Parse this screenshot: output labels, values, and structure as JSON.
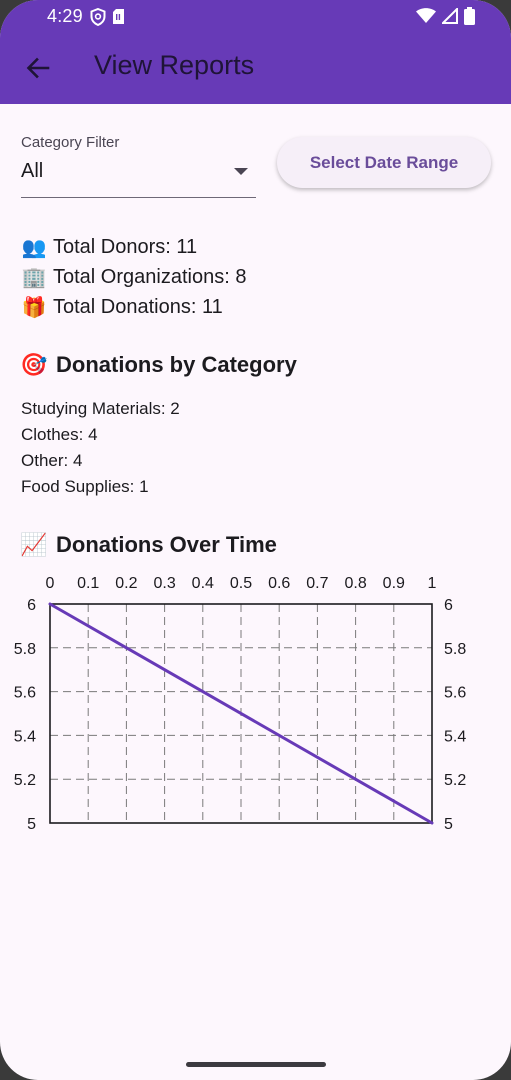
{
  "status_bar": {
    "time": "4:29",
    "left_icons": [
      "shield-icon",
      "sim-card-icon"
    ],
    "right_icons": [
      "wifi-icon",
      "signal-icon",
      "battery-icon"
    ]
  },
  "app_bar": {
    "title": "View Reports",
    "back_icon": "arrow-left-icon",
    "color": "#673ab7"
  },
  "filters": {
    "category_label": "Category Filter",
    "category_value": "All",
    "date_range_button": "Select Date Range"
  },
  "stats": [
    {
      "icon": "👥",
      "text": "Total Donors: 11"
    },
    {
      "icon": "🏢",
      "text": "Total Organizations: 8"
    },
    {
      "icon": "🎁",
      "text": "Total Donations: 11"
    }
  ],
  "category_section": {
    "icon": "🎯",
    "title": "Donations by Category",
    "items": [
      "Studying Materials: 2",
      "Clothes: 4",
      "Other: 4",
      "Food Supplies: 1"
    ]
  },
  "time_section": {
    "icon": "📈",
    "title": "Donations Over Time"
  },
  "chart_data": {
    "type": "line",
    "x_ticks": [
      "0",
      "0.1",
      "0.2",
      "0.3",
      "0.4",
      "0.5",
      "0.6",
      "0.7",
      "0.8",
      "0.9",
      "1"
    ],
    "left_y_ticks": [
      {
        "value": 6,
        "label": "6"
      },
      {
        "value": 5.8,
        "label": "5.8"
      },
      {
        "value": 5.6,
        "label": "5.6"
      },
      {
        "value": 5.4,
        "label": "5.4"
      },
      {
        "value": 5.2,
        "label": "5.2"
      },
      {
        "value": 5,
        "label": "5"
      }
    ],
    "right_y_ticks": [
      "6",
      "5.8",
      "5.6",
      "5.4",
      "5.2",
      "5"
    ],
    "xlim": [
      0,
      1
    ],
    "ylim": [
      5,
      6
    ],
    "grid": true,
    "series": [
      {
        "color": "#673ab7",
        "x": [
          0,
          1
        ],
        "y": [
          6,
          5
        ]
      }
    ]
  }
}
